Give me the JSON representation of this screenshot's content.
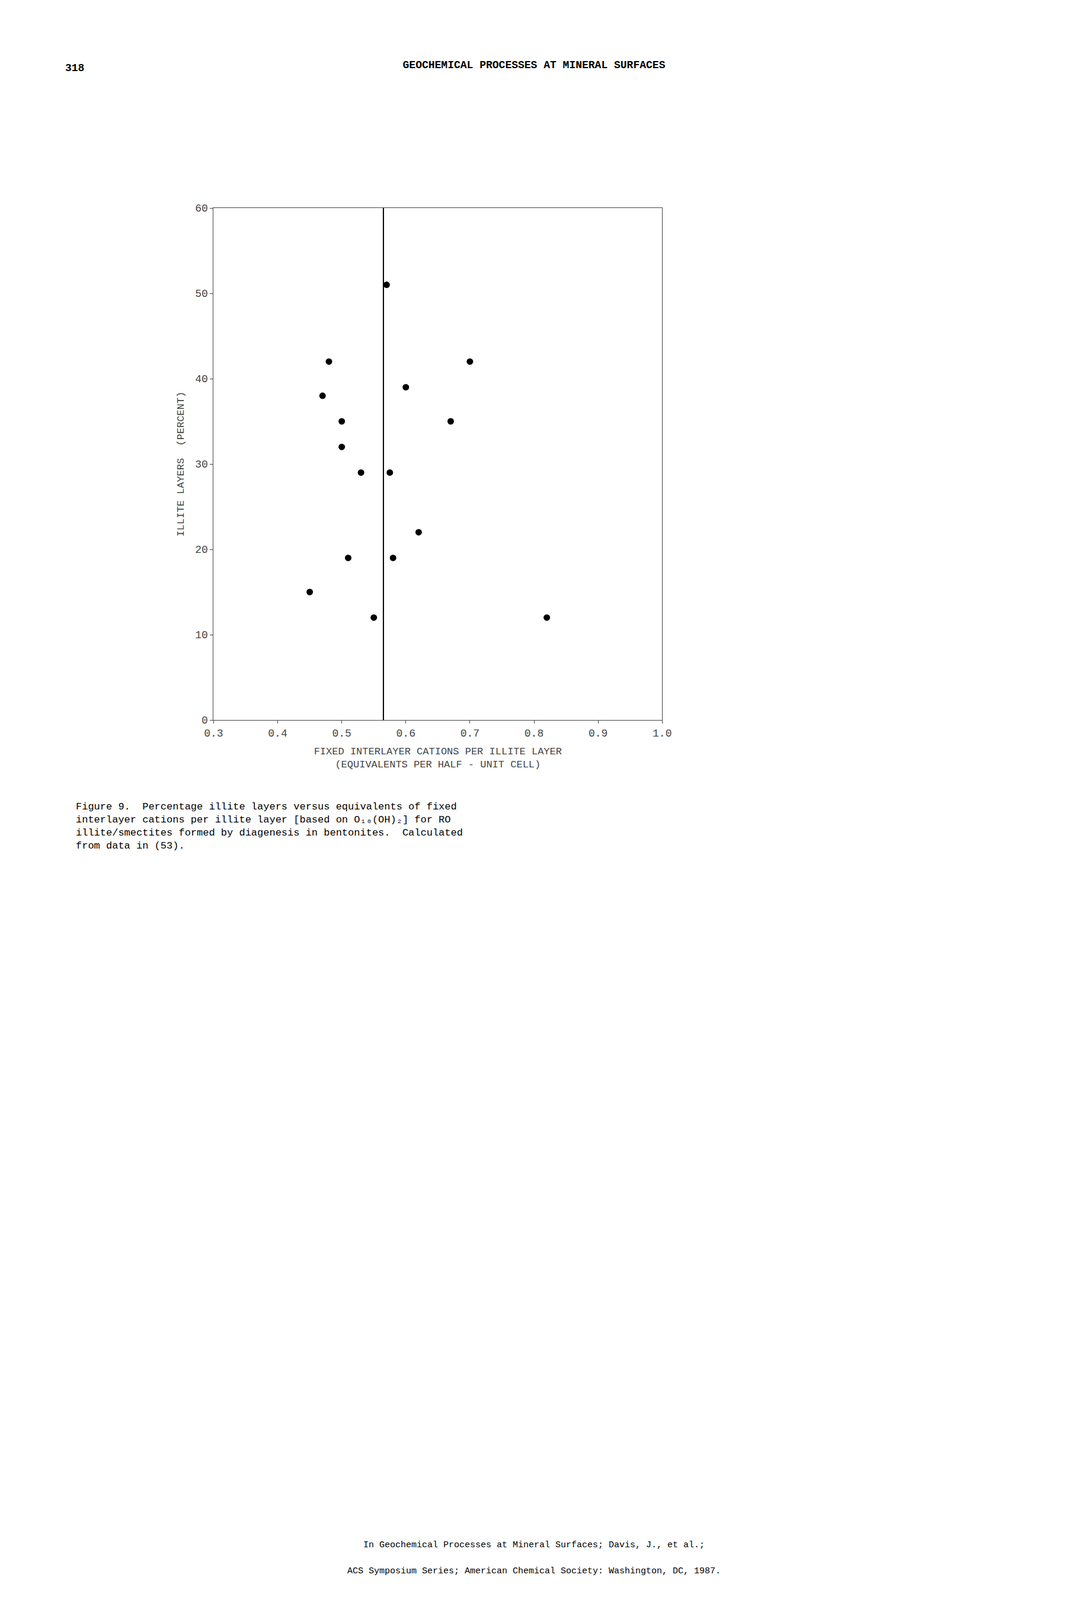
{
  "chart_data": {
    "type": "scatter",
    "title": "GEOCHEMICAL PROCESSES AT MINERAL SURFACES",
    "x_label": "FIXED INTERLAYER CATIONS PER ILLITE LAYER\n(EQUIVALENTS PER HALF - UNIT CELL)",
    "y_label": "ILLITE LAYERS  (PERCENT)",
    "x": [
      0.45,
      0.47,
      0.48,
      0.5,
      0.5,
      0.51,
      0.53,
      0.55,
      0.57,
      0.575,
      0.58,
      0.6,
      0.62,
      0.67,
      0.7,
      0.82
    ],
    "values": [
      15,
      38,
      42,
      32,
      35,
      19,
      29,
      12,
      51,
      29,
      19,
      39,
      22,
      35,
      42,
      12
    ],
    "color": "#000000",
    "vline": 0.565,
    "xlim": [
      0.3,
      1.0
    ],
    "ylim": [
      0,
      60
    ],
    "xticks": [
      0.3,
      0.4,
      0.5,
      0.6,
      0.7,
      0.8,
      0.9,
      {
        "value": 1.0,
        "label": "1.0"
      }
    ],
    "yticks": [
      0,
      10,
      20,
      30,
      40,
      50,
      60
    ],
    "grid": false,
    "annotations": [
      "318",
      "Figure 9.  Percentage illite layers versus equivalents of fixed",
      "interlayer cations per illite layer [based on O₁₀(OH)₂] for RO",
      "illite/smectites formed by diagenesis in bentonites.  Calculated",
      "from data in (53).",
      "In Geochemical Processes at Mineral Surfaces; Davis, J., et al.;",
      "ACS Symposium Series; American Chemical Society: Washington, DC, 1987."
    ]
  }
}
